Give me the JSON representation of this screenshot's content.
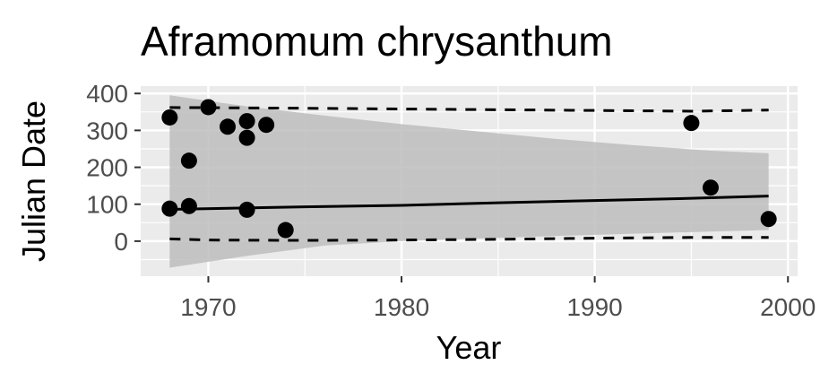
{
  "chart_data": {
    "type": "scatter",
    "title": "Aframomum chrysanthum",
    "xlabel": "Year",
    "ylabel": "Julian Date",
    "xlim": [
      1966.5,
      2000.5
    ],
    "ylim": [
      -95,
      420
    ],
    "x_ticks": [
      1970,
      1980,
      1990,
      2000
    ],
    "y_ticks": [
      0,
      100,
      200,
      300,
      400
    ],
    "grid": true,
    "legend": "none",
    "points": [
      {
        "x": 1968,
        "y": 335
      },
      {
        "x": 1968,
        "y": 88
      },
      {
        "x": 1969,
        "y": 218
      },
      {
        "x": 1969,
        "y": 95
      },
      {
        "x": 1970,
        "y": 363
      },
      {
        "x": 1971,
        "y": 310
      },
      {
        "x": 1972,
        "y": 325
      },
      {
        "x": 1972,
        "y": 280
      },
      {
        "x": 1972,
        "y": 85
      },
      {
        "x": 1973,
        "y": 315
      },
      {
        "x": 1974,
        "y": 30
      },
      {
        "x": 1995,
        "y": 320
      },
      {
        "x": 1996,
        "y": 145
      },
      {
        "x": 1999,
        "y": 60
      }
    ],
    "fit_line": {
      "x": [
        1968,
        1975,
        1980,
        1985,
        1990,
        1995,
        1999
      ],
      "y": [
        86,
        93,
        97,
        104,
        110,
        116,
        122
      ]
    },
    "confidence_band": {
      "x": [
        1968,
        1972,
        1976,
        1980,
        1984,
        1988,
        1992,
        1996,
        1999
      ],
      "upper": [
        395,
        365,
        340,
        317,
        297,
        277,
        260,
        245,
        238
      ],
      "lower": [
        -72,
        -40,
        -12,
        0,
        7,
        14,
        20,
        26,
        30
      ]
    },
    "dashed_upper": {
      "x": [
        1968,
        1975,
        1980,
        1985,
        1990,
        1995,
        1999
      ],
      "y": [
        362,
        360,
        358,
        356,
        354,
        352,
        355
      ]
    },
    "dashed_lower": {
      "x": [
        1968,
        1970,
        1975,
        1980,
        1985,
        1990,
        1995,
        1999
      ],
      "y": [
        6,
        3,
        2,
        3,
        5,
        8,
        10,
        10
      ]
    },
    "colors": {
      "panel": "#ebebeb",
      "grid_major": "#ffffff",
      "band": "#bdbdbd",
      "points": "#000000",
      "line": "#000000",
      "tick_text": "#4d4d4d"
    }
  }
}
